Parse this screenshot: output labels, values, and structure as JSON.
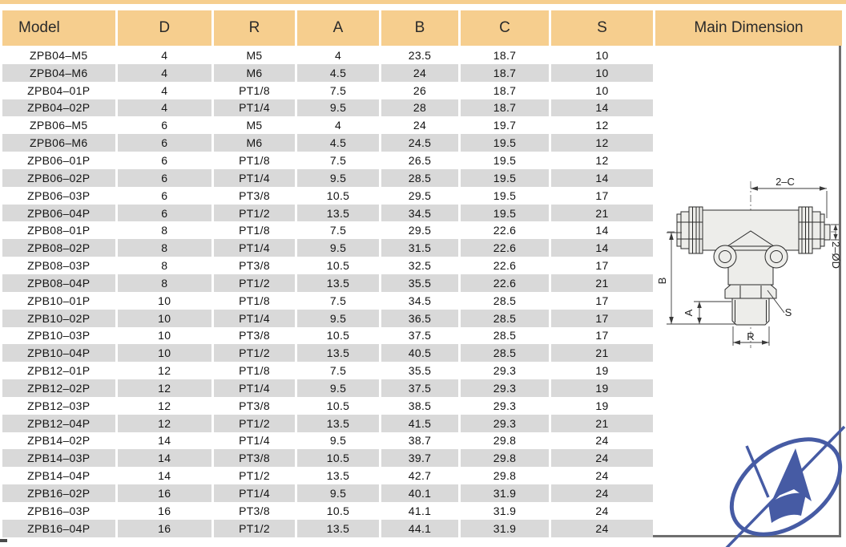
{
  "colors": {
    "header_bg": "#F6CE8E",
    "row_stripe": "#D9D9D9",
    "table_border": "#6F6F6F",
    "logo_blue": "#465BA4",
    "text": "#141414"
  },
  "table": {
    "headers": [
      "Model",
      "D",
      "R",
      "A",
      "B",
      "C",
      "S",
      "Main Dimension"
    ],
    "rows": [
      [
        "ZPB04–M5",
        "4",
        "M5",
        "4",
        "23.5",
        "18.7",
        "10"
      ],
      [
        "ZPB04–M6",
        "4",
        "M6",
        "4.5",
        "24",
        "18.7",
        "10"
      ],
      [
        "ZPB04–01P",
        "4",
        "PT1/8",
        "7.5",
        "26",
        "18.7",
        "10"
      ],
      [
        "ZPB04–02P",
        "4",
        "PT1/4",
        "9.5",
        "28",
        "18.7",
        "14"
      ],
      [
        "ZPB06–M5",
        "6",
        "M5",
        "4",
        "24",
        "19.7",
        "12"
      ],
      [
        "ZPB06–M6",
        "6",
        "M6",
        "4.5",
        "24.5",
        "19.5",
        "12"
      ],
      [
        "ZPB06–01P",
        "6",
        "PT1/8",
        "7.5",
        "26.5",
        "19.5",
        "12"
      ],
      [
        "ZPB06–02P",
        "6",
        "PT1/4",
        "9.5",
        "28.5",
        "19.5",
        "14"
      ],
      [
        "ZPB06–03P",
        "6",
        "PT3/8",
        "10.5",
        "29.5",
        "19.5",
        "17"
      ],
      [
        "ZPB06–04P",
        "6",
        "PT1/2",
        "13.5",
        "34.5",
        "19.5",
        "21"
      ],
      [
        "ZPB08–01P",
        "8",
        "PT1/8",
        "7.5",
        "29.5",
        "22.6",
        "14"
      ],
      [
        "ZPB08–02P",
        "8",
        "PT1/4",
        "9.5",
        "31.5",
        "22.6",
        "14"
      ],
      [
        "ZPB08–03P",
        "8",
        "PT3/8",
        "10.5",
        "32.5",
        "22.6",
        "17"
      ],
      [
        "ZPB08–04P",
        "8",
        "PT1/2",
        "13.5",
        "35.5",
        "22.6",
        "21"
      ],
      [
        "ZPB10–01P",
        "10",
        "PT1/8",
        "7.5",
        "34.5",
        "28.5",
        "17"
      ],
      [
        "ZPB10–02P",
        "10",
        "PT1/4",
        "9.5",
        "36.5",
        "28.5",
        "17"
      ],
      [
        "ZPB10–03P",
        "10",
        "PT3/8",
        "10.5",
        "37.5",
        "28.5",
        "17"
      ],
      [
        "ZPB10–04P",
        "10",
        "PT1/2",
        "13.5",
        "40.5",
        "28.5",
        "21"
      ],
      [
        "ZPB12–01P",
        "12",
        "PT1/8",
        "7.5",
        "35.5",
        "29.3",
        "19"
      ],
      [
        "ZPB12–02P",
        "12",
        "PT1/4",
        "9.5",
        "37.5",
        "29.3",
        "19"
      ],
      [
        "ZPB12–03P",
        "12",
        "PT3/8",
        "10.5",
        "38.5",
        "29.3",
        "19"
      ],
      [
        "ZPB12–04P",
        "12",
        "PT1/2",
        "13.5",
        "41.5",
        "29.3",
        "21"
      ],
      [
        "ZPB14–02P",
        "14",
        "PT1/4",
        "9.5",
        "38.7",
        "29.8",
        "24"
      ],
      [
        "ZPB14–03P",
        "14",
        "PT3/8",
        "10.5",
        "39.7",
        "29.8",
        "24"
      ],
      [
        "ZPB14–04P",
        "14",
        "PT1/2",
        "13.5",
        "42.7",
        "29.8",
        "24"
      ],
      [
        "ZPB16–02P",
        "16",
        "PT1/4",
        "9.5",
        "40.1",
        "31.9",
        "24"
      ],
      [
        "ZPB16–03P",
        "16",
        "PT3/8",
        "10.5",
        "41.1",
        "31.9",
        "24"
      ],
      [
        "ZPB16–04P",
        "16",
        "PT1/2",
        "13.5",
        "44.1",
        "31.9",
        "24"
      ]
    ]
  },
  "drawing": {
    "dim_top": "2–C",
    "dim_diameter": "2–ØD",
    "dim_height": "B",
    "dim_thread_length": "A",
    "dim_hex": "S",
    "dim_thread": "R"
  }
}
